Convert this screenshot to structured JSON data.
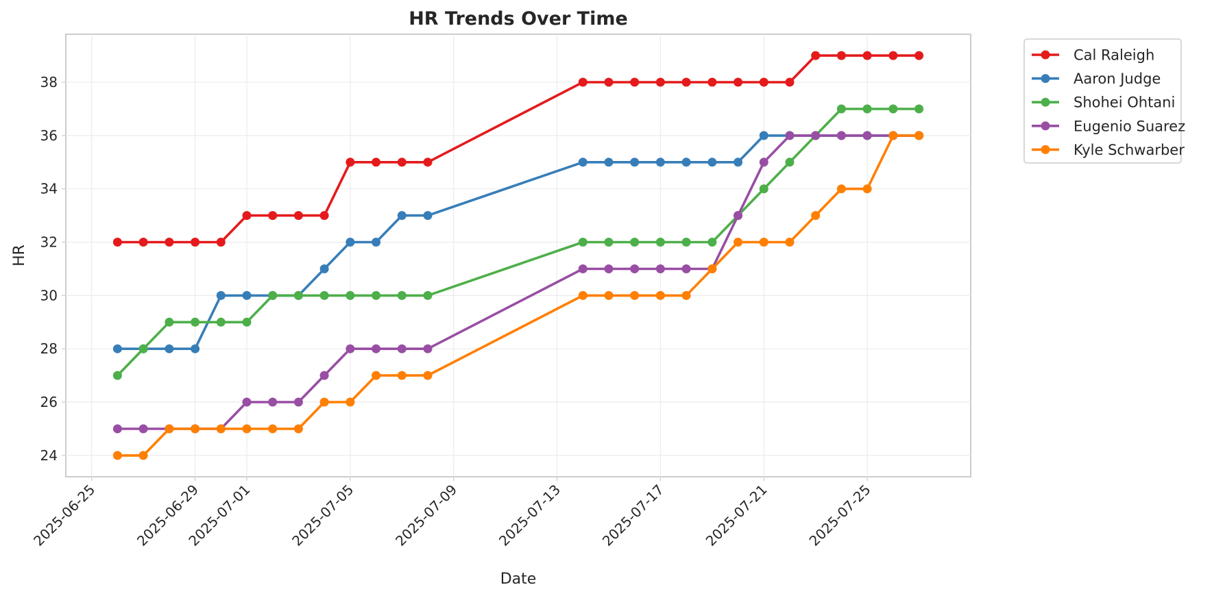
{
  "chart_data": {
    "type": "line",
    "title": "HR Trends Over Time",
    "xlabel": "Date",
    "ylabel": "HR",
    "xlim": [
      "2025-06-24",
      "2025-07-29"
    ],
    "ylim": [
      23.2,
      39.8
    ],
    "x_ticks": [
      "2025-06-25",
      "2025-06-29",
      "2025-07-01",
      "2025-07-05",
      "2025-07-09",
      "2025-07-13",
      "2025-07-17",
      "2025-07-21",
      "2025-07-25"
    ],
    "y_ticks": [
      24,
      26,
      28,
      30,
      32,
      34,
      36,
      38
    ],
    "grid": true,
    "legend_position": "outside-top-right",
    "x": [
      "2025-06-26",
      "2025-06-27",
      "2025-06-28",
      "2025-06-29",
      "2025-06-30",
      "2025-07-01",
      "2025-07-02",
      "2025-07-03",
      "2025-07-04",
      "2025-07-05",
      "2025-07-06",
      "2025-07-07",
      "2025-07-08",
      "2025-07-14",
      "2025-07-15",
      "2025-07-16",
      "2025-07-17",
      "2025-07-18",
      "2025-07-19",
      "2025-07-20",
      "2025-07-21",
      "2025-07-22",
      "2025-07-23",
      "2025-07-24",
      "2025-07-25",
      "2025-07-26",
      "2025-07-27"
    ],
    "series": [
      {
        "name": "Cal Raleigh",
        "color": "#e41a1c",
        "values": [
          32,
          32,
          32,
          32,
          32,
          33,
          33,
          33,
          33,
          35,
          35,
          35,
          35,
          38,
          38,
          38,
          38,
          38,
          38,
          38,
          38,
          38,
          39,
          39,
          39,
          39,
          39
        ]
      },
      {
        "name": "Aaron Judge",
        "color": "#377eb8",
        "values": [
          28,
          28,
          28,
          28,
          30,
          30,
          30,
          30,
          31,
          32,
          32,
          33,
          33,
          35,
          35,
          35,
          35,
          35,
          35,
          35,
          36,
          36,
          36,
          36,
          36,
          36,
          36
        ]
      },
      {
        "name": "Shohei Ohtani",
        "color": "#4daf4a",
        "values": [
          27,
          28,
          29,
          29,
          29,
          29,
          30,
          30,
          30,
          30,
          30,
          30,
          30,
          32,
          32,
          32,
          32,
          32,
          32,
          33,
          34,
          35,
          36,
          37,
          37,
          37,
          37
        ]
      },
      {
        "name": "Eugenio Suarez",
        "color": "#984ea3",
        "values": [
          25,
          25,
          25,
          25,
          25,
          26,
          26,
          26,
          27,
          28,
          28,
          28,
          28,
          31,
          31,
          31,
          31,
          31,
          31,
          33,
          35,
          36,
          36,
          36,
          36,
          36,
          36
        ]
      },
      {
        "name": "Kyle Schwarber",
        "color": "#ff7f00",
        "values": [
          24,
          24,
          25,
          25,
          25,
          25,
          25,
          25,
          26,
          26,
          27,
          27,
          27,
          30,
          30,
          30,
          30,
          30,
          31,
          32,
          32,
          32,
          33,
          34,
          34,
          36,
          36
        ]
      }
    ]
  }
}
